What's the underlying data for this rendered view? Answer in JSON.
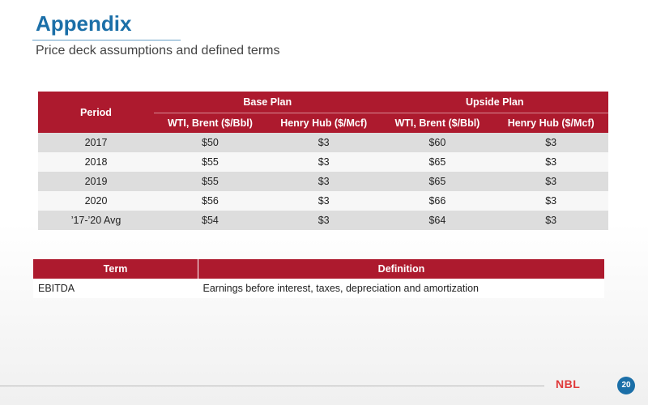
{
  "header": {
    "title": "Appendix",
    "subtitle": "Price deck assumptions and defined terms"
  },
  "price_deck": {
    "period_header": "Period",
    "groups": [
      "Base Plan",
      "Upside Plan"
    ],
    "subheaders": [
      "WTI, Brent ($/Bbl)",
      "Henry Hub ($/Mcf)",
      "WTI, Brent ($/Bbl)",
      "Henry Hub ($/Mcf)"
    ],
    "rows": [
      [
        "2017",
        "$50",
        "$3",
        "$60",
        "$3"
      ],
      [
        "2018",
        "$55",
        "$3",
        "$65",
        "$3"
      ],
      [
        "2019",
        "$55",
        "$3",
        "$65",
        "$3"
      ],
      [
        "2020",
        "$56",
        "$3",
        "$66",
        "$3"
      ],
      [
        "’17-’20 Avg",
        "$54",
        "$3",
        "$64",
        "$3"
      ]
    ]
  },
  "terms": {
    "headers": [
      "Term",
      "Definition"
    ],
    "rows": [
      [
        "EBITDA",
        "Earnings before interest, taxes, depreciation and amortization"
      ]
    ]
  },
  "footer": {
    "logo": "NBL",
    "page_number": "20"
  },
  "colors": {
    "accent_red": "#ad1a2e",
    "title_blue": "#1b6fa8"
  }
}
